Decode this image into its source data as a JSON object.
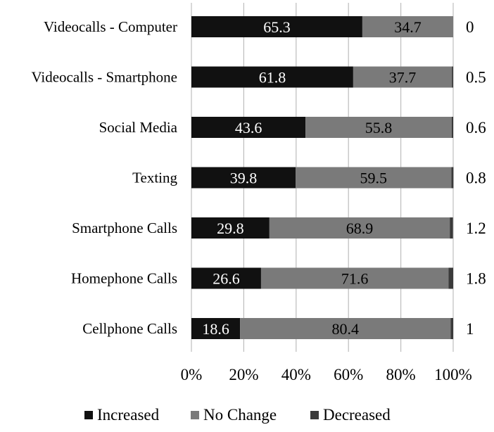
{
  "chart_data": {
    "type": "bar",
    "orientation": "horizontal",
    "stacked": true,
    "percent_axis": true,
    "categories": [
      "Videocalls - Computer",
      "Videocalls - Smartphone",
      "Social Media",
      "Texting",
      "Smartphone Calls",
      "Homephone Calls",
      "Cellphone Calls"
    ],
    "series": [
      {
        "name": "Increased",
        "values": [
          65.3,
          61.8,
          43.6,
          39.8,
          29.8,
          26.6,
          18.6
        ],
        "color": "#111111",
        "label_color": "#ffffff",
        "show_labels": true
      },
      {
        "name": "No Change",
        "values": [
          34.7,
          37.7,
          55.8,
          59.5,
          68.9,
          71.6,
          80.4
        ],
        "color": "#7a7a7a",
        "label_color": "#000000",
        "show_labels": true
      },
      {
        "name": "Decreased",
        "values": [
          0,
          0.5,
          0.6,
          0.8,
          1.2,
          1.8,
          1
        ],
        "color": "#3a3a3a",
        "show_labels": false
      }
    ],
    "side_labels": [
      "0",
      "0.5",
      "0.6",
      "0.8",
      "1.2",
      "1.8",
      "1"
    ],
    "x_ticks": [
      "0%",
      "20%",
      "40%",
      "60%",
      "80%",
      "100%"
    ],
    "xlim": [
      0,
      100
    ],
    "grid": true,
    "legend_position": "bottom"
  }
}
